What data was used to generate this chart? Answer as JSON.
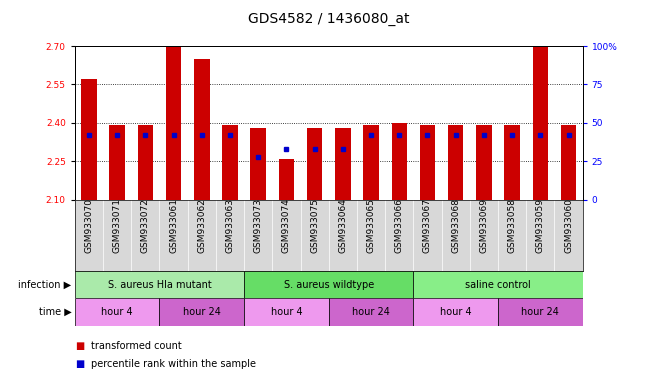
{
  "title": "GDS4582 / 1436080_at",
  "samples": [
    "GSM933070",
    "GSM933071",
    "GSM933072",
    "GSM933061",
    "GSM933062",
    "GSM933063",
    "GSM933073",
    "GSM933074",
    "GSM933075",
    "GSM933064",
    "GSM933065",
    "GSM933066",
    "GSM933067",
    "GSM933068",
    "GSM933069",
    "GSM933058",
    "GSM933059",
    "GSM933060"
  ],
  "red_values": [
    2.57,
    2.39,
    2.39,
    2.7,
    2.65,
    2.39,
    2.38,
    2.26,
    2.38,
    2.38,
    2.39,
    2.4,
    2.39,
    2.39,
    2.39,
    2.39,
    2.7,
    2.39
  ],
  "blue_percentiles": [
    42,
    42,
    42,
    42,
    42,
    42,
    28,
    33,
    33,
    33,
    42,
    42,
    42,
    42,
    42,
    42,
    42,
    42
  ],
  "ymin": 2.1,
  "ymax": 2.7,
  "yticks": [
    2.1,
    2.25,
    2.4,
    2.55,
    2.7
  ],
  "right_yticks": [
    0,
    25,
    50,
    75,
    100
  ],
  "infection_groups": [
    {
      "label": "S. aureus Hla mutant",
      "start": 0,
      "end": 6,
      "color": "#aaeaaa"
    },
    {
      "label": "S. aureus wildtype",
      "start": 6,
      "end": 12,
      "color": "#66dd66"
    },
    {
      "label": "saline control",
      "start": 12,
      "end": 18,
      "color": "#88ee88"
    }
  ],
  "time_groups": [
    {
      "label": "hour 4",
      "start": 0,
      "end": 3,
      "color": "#ee99ee"
    },
    {
      "label": "hour 24",
      "start": 3,
      "end": 6,
      "color": "#cc66cc"
    },
    {
      "label": "hour 4",
      "start": 6,
      "end": 9,
      "color": "#ee99ee"
    },
    {
      "label": "hour 24",
      "start": 9,
      "end": 12,
      "color": "#cc66cc"
    },
    {
      "label": "hour 4",
      "start": 12,
      "end": 15,
      "color": "#ee99ee"
    },
    {
      "label": "hour 24",
      "start": 15,
      "end": 18,
      "color": "#cc66cc"
    }
  ],
  "red_color": "#cc0000",
  "blue_color": "#0000cc",
  "bar_width": 0.55,
  "title_fontsize": 10,
  "tick_fontsize": 6.5,
  "label_fontsize": 7.5,
  "legend_fontsize": 7.5
}
